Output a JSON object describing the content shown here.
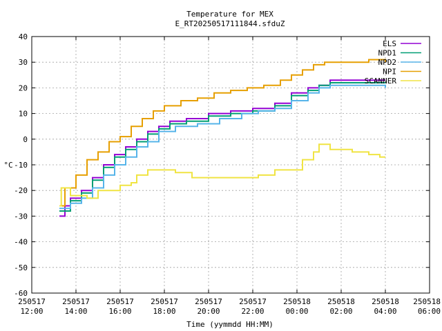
{
  "chart_data": {
    "type": "line",
    "title": "Temperature for MEX",
    "subtitle": "E_RT20250517111844.sfduZ",
    "xlabel": "Time (yymmdd HH:MM)",
    "ylabel": "°C",
    "xlim": [
      "2025-05-17 12:00",
      "2025-05-18 06:00"
    ],
    "ylim": [
      -60,
      40
    ],
    "y_ticks": [
      "40",
      "30",
      "20",
      "10",
      "0",
      "-10",
      "-20",
      "-30",
      "-40",
      "-50",
      "-60"
    ],
    "x_ticks": [
      {
        "date": "250517",
        "time": "12:00"
      },
      {
        "date": "250517",
        "time": "14:00"
      },
      {
        "date": "250517",
        "time": "16:00"
      },
      {
        "date": "250517",
        "time": "18:00"
      },
      {
        "date": "250517",
        "time": "20:00"
      },
      {
        "date": "250517",
        "time": "22:00"
      },
      {
        "date": "250518",
        "time": "00:00"
      },
      {
        "date": "250518",
        "time": "02:00"
      },
      {
        "date": "250518",
        "time": "04:00"
      },
      {
        "date": "250518",
        "time": "06:00"
      }
    ],
    "grid": true,
    "legend_position": "top-right",
    "series": [
      {
        "name": "ELS",
        "color": "#9400d3",
        "points": [
          [
            "2025-05-17 13:15",
            -30
          ],
          [
            "2025-05-17 13:30",
            -26
          ],
          [
            "2025-05-17 13:45",
            -23
          ],
          [
            "2025-05-17 14:15",
            -20
          ],
          [
            "2025-05-17 14:45",
            -15
          ],
          [
            "2025-05-17 15:15",
            -10
          ],
          [
            "2025-05-17 15:45",
            -6
          ],
          [
            "2025-05-17 16:15",
            -3
          ],
          [
            "2025-05-17 16:45",
            0
          ],
          [
            "2025-05-17 17:15",
            3
          ],
          [
            "2025-05-17 17:45",
            5
          ],
          [
            "2025-05-17 18:15",
            7
          ],
          [
            "2025-05-17 19:00",
            8
          ],
          [
            "2025-05-17 20:00",
            10
          ],
          [
            "2025-05-17 21:00",
            11
          ],
          [
            "2025-05-17 22:00",
            12
          ],
          [
            "2025-05-17 23:00",
            14
          ],
          [
            "2025-05-17 23:45",
            18
          ],
          [
            "2025-05-18 00:30",
            20
          ],
          [
            "2025-05-18 01:00",
            21
          ],
          [
            "2025-05-18 01:30",
            23
          ],
          [
            "2025-05-18 02:30",
            23
          ],
          [
            "2025-05-18 04:00",
            23
          ]
        ]
      },
      {
        "name": "NPD1",
        "color": "#009e73",
        "points": [
          [
            "2025-05-17 13:15",
            -28
          ],
          [
            "2025-05-17 13:45",
            -24
          ],
          [
            "2025-05-17 14:15",
            -21
          ],
          [
            "2025-05-17 14:45",
            -16
          ],
          [
            "2025-05-17 15:15",
            -11
          ],
          [
            "2025-05-17 15:45",
            -7
          ],
          [
            "2025-05-17 16:15",
            -4
          ],
          [
            "2025-05-17 16:45",
            -1
          ],
          [
            "2025-05-17 17:15",
            2
          ],
          [
            "2025-05-17 17:45",
            4
          ],
          [
            "2025-05-17 18:15",
            6
          ],
          [
            "2025-05-17 19:00",
            7
          ],
          [
            "2025-05-17 20:00",
            9
          ],
          [
            "2025-05-17 21:00",
            10
          ],
          [
            "2025-05-17 22:00",
            11
          ],
          [
            "2025-05-17 23:00",
            13
          ],
          [
            "2025-05-17 23:45",
            17
          ],
          [
            "2025-05-18 00:30",
            19
          ],
          [
            "2025-05-18 01:00",
            21
          ],
          [
            "2025-05-18 01:30",
            22
          ],
          [
            "2025-05-18 04:00",
            22
          ]
        ]
      },
      {
        "name": "NPD2",
        "color": "#56b4e9",
        "points": [
          [
            "2025-05-17 13:15",
            -27
          ],
          [
            "2025-05-17 13:45",
            -25
          ],
          [
            "2025-05-17 14:15",
            -23
          ],
          [
            "2025-05-17 14:45",
            -19
          ],
          [
            "2025-05-17 15:15",
            -14
          ],
          [
            "2025-05-17 15:45",
            -10
          ],
          [
            "2025-05-17 16:15",
            -7
          ],
          [
            "2025-05-17 16:45",
            -3
          ],
          [
            "2025-05-17 17:15",
            -1
          ],
          [
            "2025-05-17 17:45",
            3
          ],
          [
            "2025-05-17 18:30",
            5
          ],
          [
            "2025-05-17 19:30",
            6
          ],
          [
            "2025-05-17 20:30",
            8
          ],
          [
            "2025-05-17 21:30",
            10
          ],
          [
            "2025-05-17 22:15",
            11
          ],
          [
            "2025-05-17 23:00",
            12
          ],
          [
            "2025-05-17 23:45",
            15
          ],
          [
            "2025-05-18 00:30",
            18
          ],
          [
            "2025-05-18 01:00",
            20
          ],
          [
            "2025-05-18 01:30",
            21
          ],
          [
            "2025-05-18 04:00",
            20
          ]
        ]
      },
      {
        "name": "NPI",
        "color": "#e69f00",
        "points": [
          [
            "2025-05-17 13:15",
            -26
          ],
          [
            "2025-05-17 13:30",
            -19
          ],
          [
            "2025-05-17 14:00",
            -14
          ],
          [
            "2025-05-17 14:30",
            -8
          ],
          [
            "2025-05-17 15:00",
            -5
          ],
          [
            "2025-05-17 15:30",
            -1
          ],
          [
            "2025-05-17 16:00",
            1
          ],
          [
            "2025-05-17 16:30",
            5
          ],
          [
            "2025-05-17 17:00",
            8
          ],
          [
            "2025-05-17 17:30",
            11
          ],
          [
            "2025-05-17 18:00",
            13
          ],
          [
            "2025-05-17 18:45",
            15
          ],
          [
            "2025-05-17 19:30",
            16
          ],
          [
            "2025-05-17 20:15",
            18
          ],
          [
            "2025-05-17 21:00",
            19
          ],
          [
            "2025-05-17 21:45",
            20
          ],
          [
            "2025-05-17 22:30",
            21
          ],
          [
            "2025-05-17 23:15",
            23
          ],
          [
            "2025-05-17 23:45",
            25
          ],
          [
            "2025-05-18 00:15",
            27
          ],
          [
            "2025-05-18 00:45",
            29
          ],
          [
            "2025-05-18 01:15",
            30
          ],
          [
            "2025-05-18 02:30",
            30
          ],
          [
            "2025-05-18 03:15",
            31
          ],
          [
            "2025-05-18 04:00",
            30
          ]
        ]
      },
      {
        "name": "SCANNER",
        "color": "#f0e442",
        "points": [
          [
            "2025-05-17 13:15",
            -26
          ],
          [
            "2025-05-17 13:20",
            -19
          ],
          [
            "2025-05-17 13:45",
            -22
          ],
          [
            "2025-05-17 14:30",
            -23
          ],
          [
            "2025-05-17 15:00",
            -20
          ],
          [
            "2025-05-17 15:30",
            -20
          ],
          [
            "2025-05-17 16:00",
            -18
          ],
          [
            "2025-05-17 16:30",
            -17
          ],
          [
            "2025-05-17 16:45",
            -14
          ],
          [
            "2025-05-17 17:15",
            -12
          ],
          [
            "2025-05-17 17:45",
            -12
          ],
          [
            "2025-05-17 18:30",
            -13
          ],
          [
            "2025-05-17 19:15",
            -15
          ],
          [
            "2025-05-17 20:30",
            -15
          ],
          [
            "2025-05-17 21:30",
            -15
          ],
          [
            "2025-05-17 22:15",
            -14
          ],
          [
            "2025-05-17 23:00",
            -12
          ],
          [
            "2025-05-17 23:45",
            -12
          ],
          [
            "2025-05-18 00:15",
            -8
          ],
          [
            "2025-05-18 00:45",
            -5
          ],
          [
            "2025-05-18 01:00",
            -2
          ],
          [
            "2025-05-18 01:30",
            -4
          ],
          [
            "2025-05-18 02:00",
            -4
          ],
          [
            "2025-05-18 02:30",
            -5
          ],
          [
            "2025-05-18 03:15",
            -6
          ],
          [
            "2025-05-18 03:45",
            -7
          ],
          [
            "2025-05-18 04:00",
            -7
          ]
        ]
      }
    ]
  }
}
